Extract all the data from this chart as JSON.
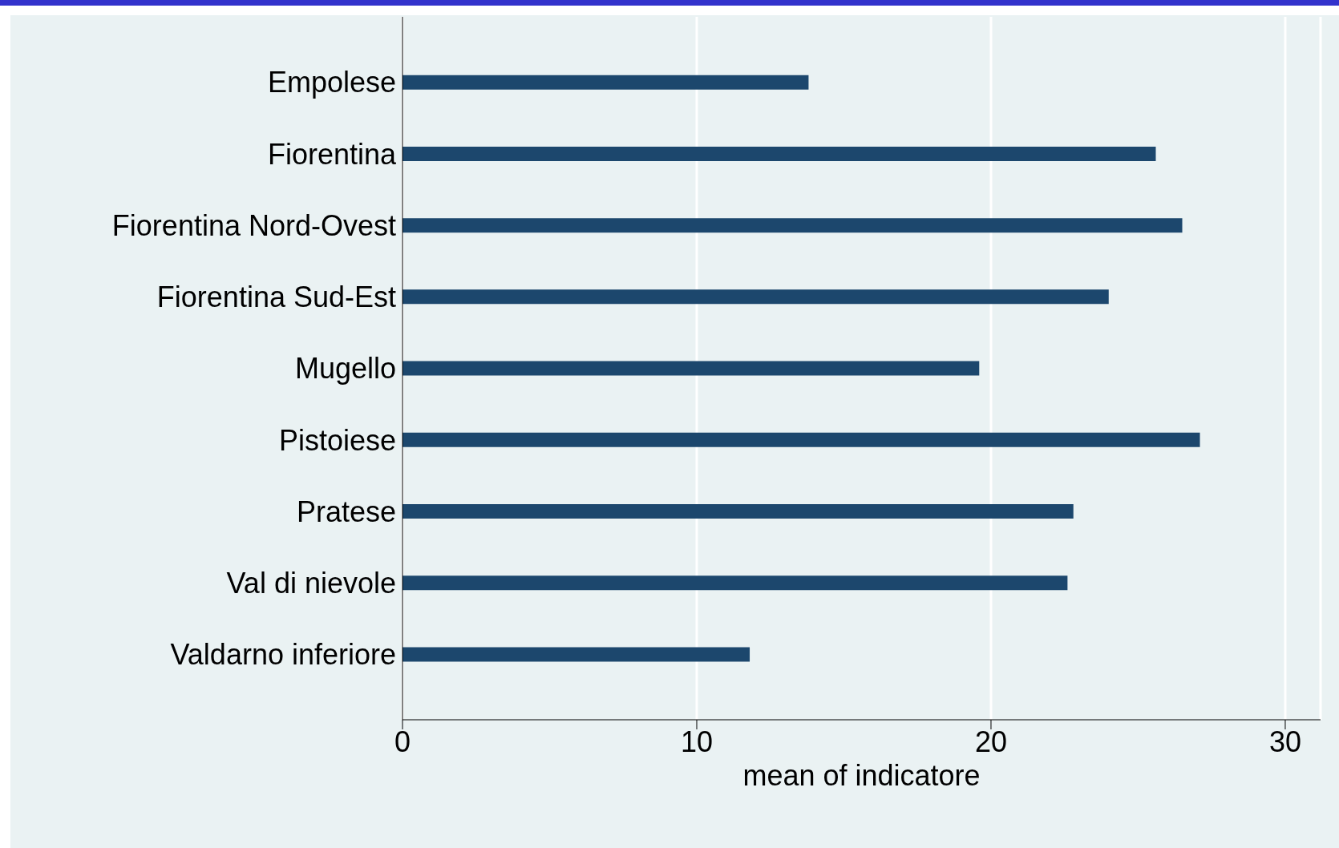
{
  "chart_data": {
    "type": "bar",
    "orientation": "horizontal",
    "xlabel": "mean of indicatore",
    "categories": [
      "Empolese",
      "Fiorentina",
      "Fiorentina Nord-Ovest",
      "Fiorentina Sud-Est",
      "Mugello",
      "Pistoiese",
      "Pratese",
      "Val di nievole",
      "Valdarno inferiore"
    ],
    "values": [
      13.8,
      25.6,
      26.5,
      24.0,
      19.6,
      27.1,
      22.8,
      22.6,
      11.8
    ],
    "color": "#1c476d",
    "xlim": [
      0,
      31.2
    ],
    "xticks": [
      0,
      10,
      20,
      30
    ],
    "grid": "x"
  }
}
